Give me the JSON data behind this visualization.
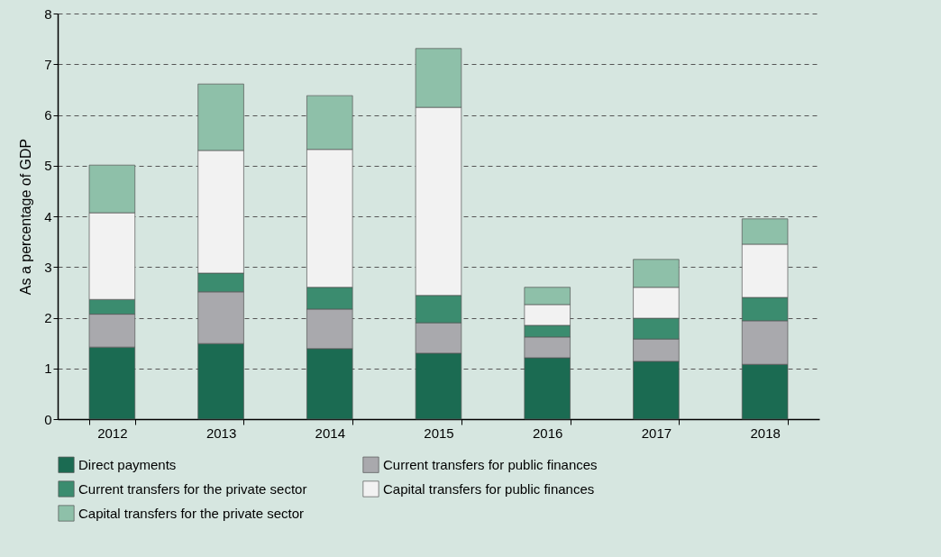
{
  "chart_data": {
    "type": "bar",
    "stacked": true,
    "ylabel": "As a percentage of GDP",
    "categories": [
      "2012",
      "2013",
      "2014",
      "2015",
      "2016",
      "2017",
      "2018"
    ],
    "series": [
      {
        "name": "Direct payments",
        "color": "#1b6b52",
        "values": [
          1.42,
          1.49,
          1.39,
          1.3,
          1.21,
          1.14,
          1.08
        ]
      },
      {
        "name": "Current transfers for public finances",
        "color": "#a9a9ad",
        "values": [
          0.65,
          1.02,
          0.78,
          0.6,
          0.41,
          0.44,
          0.86
        ]
      },
      {
        "name": "Current transfers for the private sector",
        "color": "#3b8c6f",
        "values": [
          0.29,
          0.37,
          0.43,
          0.54,
          0.23,
          0.41,
          0.46
        ]
      },
      {
        "name": "Capital transfers for public finances",
        "color": "#f2f2f2",
        "values": [
          1.71,
          2.42,
          2.72,
          3.71,
          0.41,
          0.61,
          1.05
        ]
      },
      {
        "name": "Capital transfers for the private sector",
        "color": "#8ec0a9",
        "values": [
          0.94,
          1.31,
          1.06,
          1.16,
          0.34,
          0.55,
          0.5
        ]
      }
    ],
    "ylim": [
      0,
      8
    ],
    "yticks": [
      0,
      1,
      2,
      3,
      4,
      5,
      6,
      7,
      8
    ],
    "grid": "y",
    "legend": "bottom"
  }
}
